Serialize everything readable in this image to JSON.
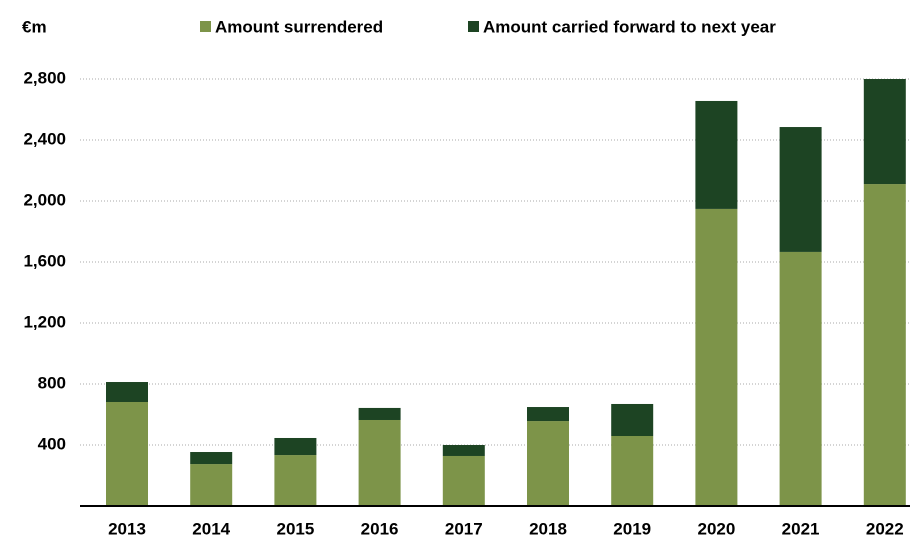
{
  "chart_data": {
    "type": "stacked_bar",
    "y_label": "€m",
    "categories": [
      "2013",
      "2014",
      "2015",
      "2016",
      "2017",
      "2018",
      "2019",
      "2020",
      "2021",
      "2022"
    ],
    "series": [
      {
        "name": "Amount surrendered",
        "color": "#7d9449",
        "values": [
          682,
          275,
          334,
          564,
          328,
          557,
          459,
          1948,
          1666,
          2111
        ]
      },
      {
        "name": "Amount carried forward to next year",
        "color": "#1d4423",
        "values": [
          131,
          79,
          112,
          79,
          72,
          92,
          210,
          708,
          819,
          689
        ]
      }
    ],
    "ylim": [
      0,
      2800
    ],
    "yticks": [
      400,
      800,
      {
        "value": 1200,
        "label": "1,200"
      },
      {
        "value": 1600,
        "label": "1,600"
      },
      {
        "value": 2000,
        "label": "2,000"
      },
      {
        "value": 2400,
        "label": "2,400"
      },
      {
        "value": 2800,
        "label": "2,800"
      }
    ],
    "grid": true
  }
}
